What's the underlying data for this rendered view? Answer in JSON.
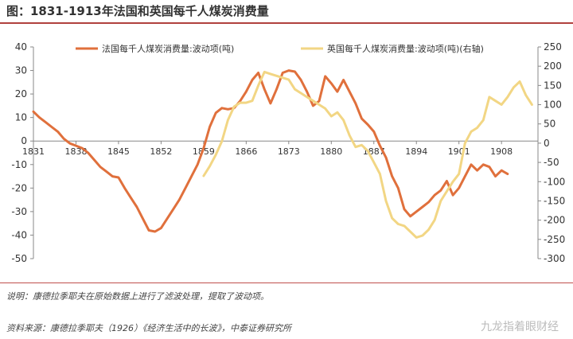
{
  "title": "图：1831-1913年法国和英国每千人煤炭消费量",
  "note": "说明：康德拉季耶夫在原始数据上进行了滤波处理，提取了波动项。",
  "source": "资料来源：康德拉季耶夫（1926）《经济生活中的长波》，中泰证券研究所",
  "watermark": "九龙指着眼财经",
  "colors": {
    "france": "#e0703c",
    "uk": "#f2d684",
    "accent": "#b0413e"
  },
  "chart_data": {
    "type": "line",
    "x_ticks": [
      1831,
      1838,
      1845,
      1852,
      1859,
      1866,
      1873,
      1880,
      1887,
      1894,
      1901,
      1908
    ],
    "x_range": [
      1831,
      1914
    ],
    "left_axis": {
      "range": [
        -50,
        40
      ],
      "ticks": [
        40,
        30,
        20,
        10,
        0,
        -10,
        -20,
        -30,
        -40,
        -50
      ]
    },
    "right_axis": {
      "range": [
        -300,
        250
      ],
      "ticks": [
        250,
        200,
        150,
        100,
        50,
        0,
        -50,
        -100,
        -150,
        -200,
        -250,
        -300
      ]
    },
    "legend_position": "top",
    "series": [
      {
        "name": "法国每千人煤炭消费量:波动项(吨)",
        "axis": "left",
        "x": [
          1831,
          1832,
          1833,
          1834,
          1835,
          1836,
          1837,
          1838,
          1839,
          1840,
          1841,
          1842,
          1843,
          1844,
          1845,
          1846,
          1847,
          1848,
          1849,
          1850,
          1851,
          1852,
          1853,
          1854,
          1855,
          1856,
          1857,
          1858,
          1859,
          1860,
          1861,
          1862,
          1863,
          1864,
          1865,
          1866,
          1867,
          1868,
          1869,
          1870,
          1871,
          1872,
          1873,
          1874,
          1875,
          1876,
          1877,
          1878,
          1879,
          1880,
          1881,
          1882,
          1883,
          1884,
          1885,
          1886,
          1887,
          1888,
          1889,
          1890,
          1891,
          1892,
          1893,
          1894,
          1895,
          1896,
          1897,
          1898,
          1899,
          1900,
          1901,
          1902,
          1903,
          1904,
          1905,
          1906,
          1907,
          1908,
          1909
        ],
        "values": [
          12.5,
          10,
          8,
          6,
          4,
          1,
          -1,
          -2,
          -3,
          -5,
          -8,
          -11,
          -13,
          -15,
          -15.5,
          -20,
          -24,
          -28,
          -33,
          -38,
          -38.5,
          -37,
          -33,
          -29,
          -25,
          -20,
          -15,
          -10,
          -3,
          6,
          12,
          14,
          13.5,
          14,
          17,
          21,
          26,
          29,
          22,
          16,
          22,
          29,
          30,
          29.5,
          26,
          21,
          15,
          17,
          27.5,
          24.5,
          21,
          26,
          21,
          16,
          9.5,
          7,
          4,
          -2,
          -7,
          -15,
          -20,
          -29,
          -32,
          -30,
          -28,
          -26,
          -23,
          -21,
          -17,
          -23,
          -20,
          -15,
          -10,
          -12.5,
          -10,
          -11,
          -15,
          -12.5,
          -14
        ]
      },
      {
        "name": "英国每千人煤炭消费量:波动项(吨)(右轴)",
        "axis": "right",
        "x": [
          1859,
          1860,
          1861,
          1862,
          1863,
          1864,
          1865,
          1866,
          1867,
          1868,
          1869,
          1870,
          1871,
          1872,
          1873,
          1874,
          1875,
          1876,
          1877,
          1878,
          1879,
          1880,
          1881,
          1882,
          1883,
          1884,
          1885,
          1886,
          1887,
          1888,
          1889,
          1890,
          1891,
          1892,
          1893,
          1894,
          1895,
          1896,
          1897,
          1898,
          1899,
          1900,
          1901,
          1902,
          1903,
          1904,
          1905,
          1906,
          1907,
          1908,
          1909,
          1910,
          1911,
          1912,
          1913
        ],
        "values": [
          -85,
          -60,
          -30,
          5,
          60,
          95,
          105,
          105,
          110,
          150,
          185,
          180,
          175,
          170,
          165,
          140,
          130,
          120,
          110,
          100,
          90,
          70,
          80,
          60,
          20,
          -10,
          -5,
          -20,
          -50,
          -80,
          -150,
          -195,
          -210,
          -215,
          -230,
          -245,
          -240,
          -225,
          -200,
          -150,
          -125,
          -100,
          -80,
          0,
          30,
          40,
          60,
          120,
          110,
          100,
          120,
          145,
          160,
          125,
          100
        ]
      }
    ]
  }
}
